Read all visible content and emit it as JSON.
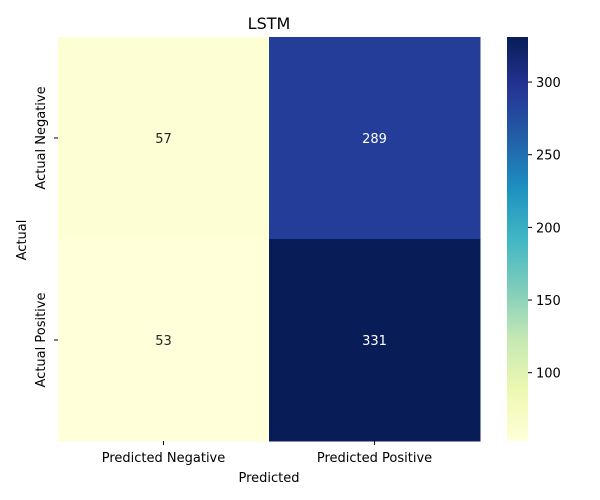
{
  "chart_data": {
    "type": "heatmap",
    "title": "LSTM",
    "xlabel": "Predicted",
    "ylabel": "Actual",
    "x_categories": [
      "Predicted Negative",
      "Predicted Positive"
    ],
    "y_categories": [
      "Actual Negative",
      "Actual Positive"
    ],
    "values": [
      [
        57,
        289
      ],
      [
        53,
        331
      ]
    ],
    "colormap": "YlGnBu",
    "colorbar": {
      "min": 53,
      "max": 331,
      "ticks": [
        100,
        150,
        200,
        250,
        300
      ]
    }
  }
}
